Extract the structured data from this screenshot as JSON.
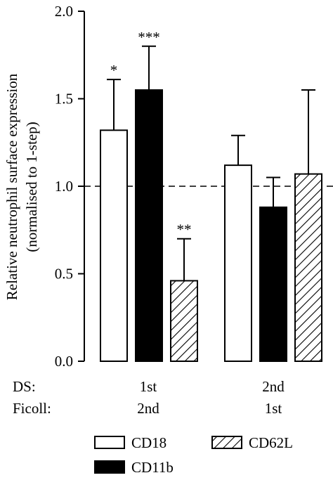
{
  "chart_data": {
    "type": "bar",
    "ylabel": "Relative neutrophil surface expression",
    "ylabel_sub": "(normalised to 1-step)",
    "ylim": [
      0,
      2.0
    ],
    "yticks": [
      "0.0",
      "0.5",
      "1.0",
      "1.5",
      "2.0"
    ],
    "yticks_values": [
      0,
      0.5,
      1.0,
      1.5,
      2.0
    ],
    "reference_line": 1.0,
    "group_rows": [
      {
        "label": "DS:",
        "values": [
          "1st",
          "2nd"
        ]
      },
      {
        "label": "Ficoll:",
        "values": [
          "2nd",
          "1st"
        ]
      }
    ],
    "series": [
      {
        "name": "CD18",
        "fill": "white",
        "values": [
          1.32,
          1.12
        ],
        "errors": [
          0.29,
          0.17
        ],
        "significance": [
          "*",
          ""
        ]
      },
      {
        "name": "CD11b",
        "fill": "black",
        "values": [
          1.55,
          0.88
        ],
        "errors": [
          0.25,
          0.17
        ],
        "significance": [
          "***",
          ""
        ]
      },
      {
        "name": "CD62L",
        "fill": "hatched",
        "values": [
          0.46,
          1.07
        ],
        "errors": [
          0.24,
          0.48
        ],
        "significance": [
          "**",
          ""
        ]
      }
    ],
    "legend_placement": "bottom",
    "colors": {
      "bar_outline": "#000000",
      "black_fill": "#000000",
      "white_fill": "#ffffff"
    }
  }
}
